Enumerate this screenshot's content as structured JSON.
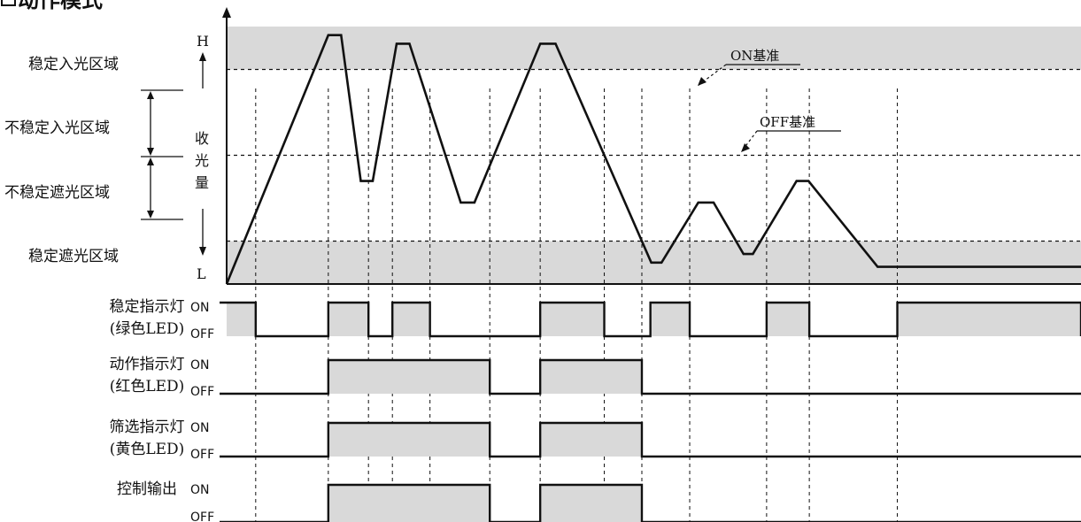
{
  "title": "动作模式",
  "title_icon": "square-bullet-icon",
  "chart": {
    "level_labels": {
      "high": "H",
      "low": "L"
    },
    "y_axis_label": [
      "收",
      "光",
      "量"
    ],
    "regions": [
      {
        "key": "stable_light",
        "label": "稳定入光区域",
        "shaded": true
      },
      {
        "key": "unstable_light",
        "label": "不稳定入光区域",
        "shaded": false
      },
      {
        "key": "unstable_dark",
        "label": "不稳定遮光区域",
        "shaded": false
      },
      {
        "key": "stable_dark",
        "label": "稳定遮光区域",
        "shaded": true
      }
    ],
    "thresholds": [
      {
        "key": "on",
        "label": "ON基准",
        "level": 4
      },
      {
        "key": "off",
        "label": "OFF基准",
        "level": 3
      }
    ],
    "level_scale": {
      "min": 0,
      "max": 6,
      "stable_light_from": 5,
      "stable_dark_below": 1
    },
    "light_waveform": [
      [
        0,
        0
      ],
      [
        11.9,
        5.8
      ],
      [
        13.4,
        5.8
      ],
      [
        15.7,
        2.4
      ],
      [
        17.1,
        2.4
      ],
      [
        19.9,
        5.6
      ],
      [
        21.4,
        5.6
      ],
      [
        27.4,
        1.9
      ],
      [
        29.0,
        1.9
      ],
      [
        36.7,
        5.6
      ],
      [
        38.5,
        5.6
      ],
      [
        49.7,
        0.5
      ],
      [
        50.9,
        0.5
      ],
      [
        55.2,
        1.9
      ],
      [
        57.0,
        1.9
      ],
      [
        60.5,
        0.7
      ],
      [
        61.6,
        0.7
      ],
      [
        66.7,
        2.4
      ],
      [
        68.1,
        2.4
      ],
      [
        76.2,
        0.4
      ],
      [
        100,
        0.4
      ]
    ]
  },
  "indicators": [
    {
      "key": "stable",
      "label": "稳定指示灯",
      "sublabel": "(绿色LED)",
      "on_label": "ON",
      "off_label": "OFF",
      "segments": [
        [
          0,
          3.4,
          1
        ],
        [
          3.4,
          11.9,
          0
        ],
        [
          11.9,
          16.6,
          1
        ],
        [
          16.6,
          19.4,
          0
        ],
        [
          19.4,
          23.8,
          1
        ],
        [
          23.8,
          36.7,
          0
        ],
        [
          36.7,
          44.2,
          1
        ],
        [
          44.2,
          49.6,
          0
        ],
        [
          49.6,
          54.2,
          1
        ],
        [
          54.2,
          63.2,
          0
        ],
        [
          63.2,
          68.2,
          1
        ],
        [
          68.2,
          78.5,
          0
        ],
        [
          78.5,
          100,
          1
        ]
      ]
    },
    {
      "key": "operation",
      "label": "动作指示灯",
      "sublabel": "(红色LED)",
      "on_label": "ON",
      "off_label": "OFF",
      "segments": [
        [
          11.9,
          30.8,
          1
        ],
        [
          36.7,
          48.6,
          1
        ]
      ]
    },
    {
      "key": "filter",
      "label": "筛选指示灯",
      "sublabel": "(黄色LED)",
      "on_label": "ON",
      "off_label": "OFF",
      "segments": [
        [
          11.9,
          30.8,
          1
        ],
        [
          36.7,
          48.6,
          1
        ]
      ]
    },
    {
      "key": "control",
      "label": "控制输出",
      "sublabel": "",
      "on_label": "ON",
      "off_label": "OFF",
      "segments": [
        [
          11.9,
          30.8,
          1
        ],
        [
          36.7,
          48.6,
          1
        ]
      ]
    }
  ],
  "guide_times": [
    3.4,
    11.9,
    16.6,
    19.4,
    23.8,
    30.8,
    36.7,
    44.2,
    48.6,
    54.2,
    63.2,
    68.2,
    78.5
  ],
  "colors": {
    "shade": "#d9d9d9",
    "line": "#111111",
    "background": "#ffffff"
  }
}
